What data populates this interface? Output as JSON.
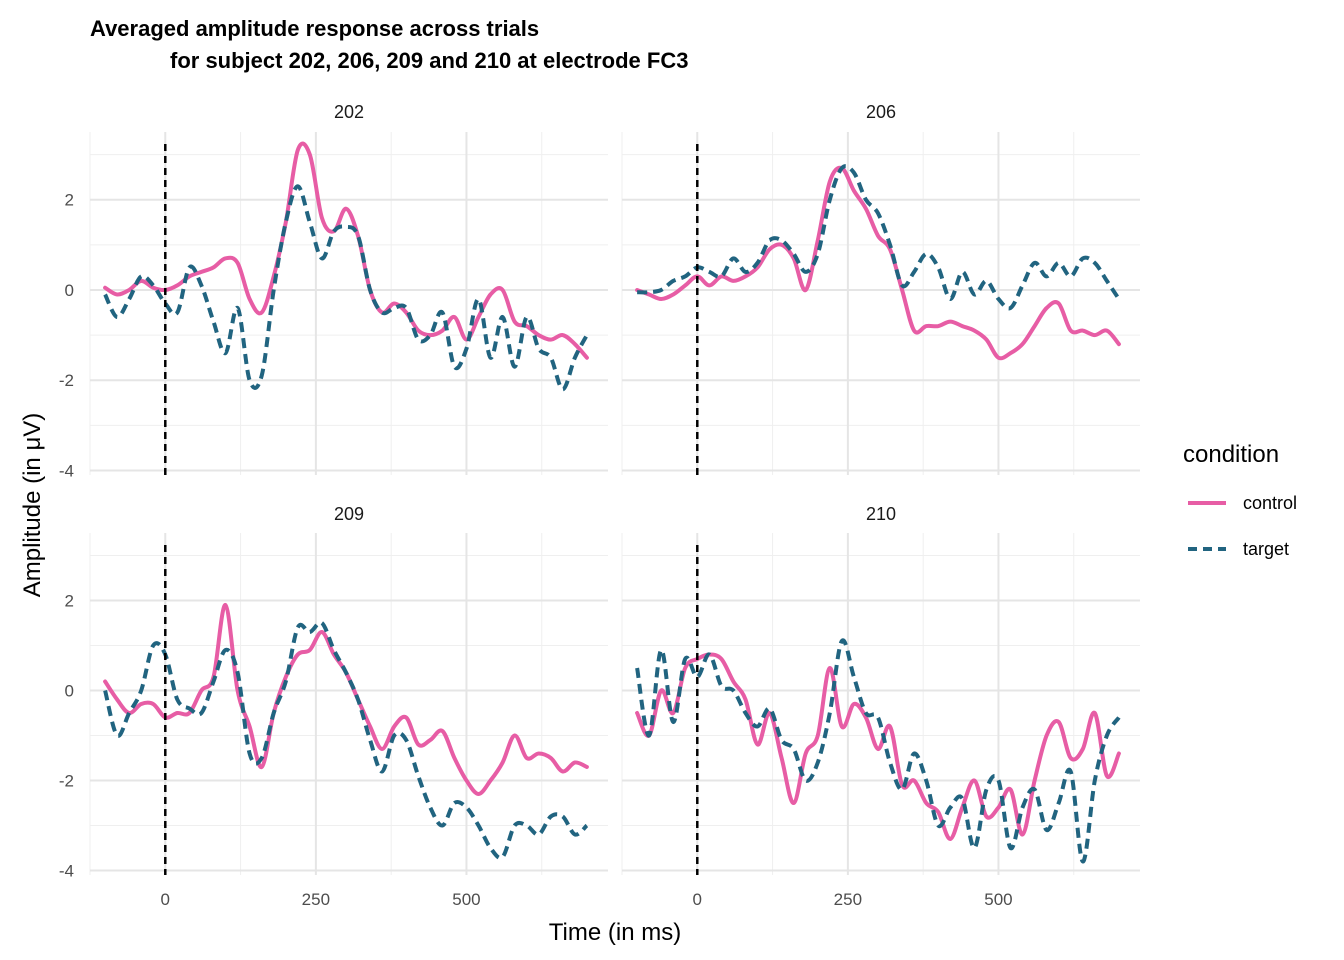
{
  "chart_data": {
    "type": "line",
    "title_line1": "Averaged amplitude response across trials",
    "title_line2": "for subject 202, 206, 209 and 210 at electrode FC3",
    "xlabel": "Time (in ms)",
    "ylabel": "Amplitude (in μV)",
    "xlim": [
      -125,
      735
    ],
    "ylim": [
      -4.1,
      3.5
    ],
    "xticks": [
      0,
      250,
      500
    ],
    "yticks": [
      -4,
      -2,
      0,
      2
    ],
    "vline_x": 0,
    "legend": {
      "title": "condition",
      "position": "right"
    },
    "series_styles": [
      {
        "name": "control",
        "color": "#E75DA5",
        "dash": "solid"
      },
      {
        "name": "target",
        "color": "#216480",
        "dash": "dashed"
      }
    ],
    "panels": [
      {
        "label": "202",
        "series": [
          {
            "name": "control",
            "x": [
              -100,
              -80,
              -60,
              -40,
              -20,
              0,
              20,
              40,
              60,
              80,
              100,
              120,
              140,
              160,
              180,
              200,
              220,
              240,
              260,
              280,
              300,
              320,
              340,
              360,
              380,
              400,
              420,
              440,
              460,
              480,
              500,
              520,
              540,
              560,
              580,
              600,
              620,
              640,
              660,
              680,
              700
            ],
            "y": [
              0.05,
              -0.1,
              0.0,
              0.2,
              0.05,
              0.0,
              0.1,
              0.3,
              0.4,
              0.5,
              0.7,
              0.6,
              -0.2,
              -0.5,
              0.3,
              1.5,
              3.1,
              3.0,
              1.6,
              1.3,
              1.8,
              1.2,
              0.0,
              -0.5,
              -0.3,
              -0.5,
              -0.9,
              -1.0,
              -0.9,
              -0.6,
              -1.1,
              -0.6,
              -0.1,
              0.0,
              -0.7,
              -0.8,
              -1.0,
              -1.1,
              -1.0,
              -1.2,
              -1.5
            ]
          },
          {
            "name": "target",
            "x": [
              -100,
              -80,
              -60,
              -40,
              -20,
              0,
              20,
              40,
              60,
              80,
              100,
              120,
              140,
              160,
              180,
              200,
              220,
              240,
              260,
              280,
              300,
              320,
              340,
              360,
              380,
              400,
              420,
              440,
              460,
              480,
              500,
              520,
              540,
              560,
              580,
              600,
              620,
              640,
              660,
              680,
              700
            ],
            "y": [
              -0.1,
              -0.6,
              -0.2,
              0.3,
              0.1,
              -0.3,
              -0.5,
              0.5,
              0.1,
              -0.7,
              -1.4,
              -0.4,
              -2.0,
              -1.9,
              0.0,
              1.5,
              2.3,
              1.5,
              0.7,
              1.3,
              1.4,
              1.2,
              0.0,
              -0.5,
              -0.4,
              -0.4,
              -1.1,
              -1.0,
              -0.5,
              -1.7,
              -1.3,
              -0.2,
              -1.5,
              -0.6,
              -1.7,
              -0.6,
              -1.3,
              -1.5,
              -2.2,
              -1.5,
              -1.0
            ]
          }
        ]
      },
      {
        "label": "206",
        "series": [
          {
            "name": "control",
            "x": [
              -100,
              -80,
              -60,
              -40,
              -20,
              0,
              20,
              40,
              60,
              80,
              100,
              120,
              140,
              160,
              180,
              200,
              220,
              240,
              260,
              280,
              300,
              320,
              340,
              360,
              380,
              400,
              420,
              440,
              460,
              480,
              500,
              520,
              540,
              560,
              580,
              600,
              620,
              640,
              660,
              680,
              700
            ],
            "y": [
              0.0,
              -0.1,
              -0.2,
              -0.1,
              0.1,
              0.3,
              0.1,
              0.3,
              0.2,
              0.3,
              0.5,
              0.9,
              1.0,
              0.7,
              0.0,
              1.1,
              2.4,
              2.7,
              2.2,
              1.8,
              1.2,
              0.9,
              0.0,
              -0.9,
              -0.8,
              -0.8,
              -0.7,
              -0.8,
              -0.9,
              -1.1,
              -1.5,
              -1.4,
              -1.2,
              -0.8,
              -0.4,
              -0.3,
              -0.9,
              -0.9,
              -1.0,
              -0.9,
              -1.2
            ]
          },
          {
            "name": "target",
            "x": [
              -100,
              -80,
              -60,
              -40,
              -20,
              0,
              20,
              40,
              60,
              80,
              100,
              120,
              140,
              160,
              180,
              200,
              220,
              240,
              260,
              280,
              300,
              320,
              340,
              360,
              380,
              400,
              420,
              440,
              460,
              480,
              500,
              520,
              540,
              560,
              580,
              600,
              620,
              640,
              660,
              680,
              700
            ],
            "y": [
              -0.05,
              -0.05,
              0.0,
              0.2,
              0.3,
              0.5,
              0.4,
              0.3,
              0.7,
              0.4,
              0.6,
              1.1,
              1.1,
              0.8,
              0.4,
              0.8,
              2.0,
              2.7,
              2.6,
              2.0,
              1.7,
              1.0,
              0.1,
              0.4,
              0.8,
              0.5,
              -0.2,
              0.4,
              -0.1,
              0.2,
              -0.2,
              -0.4,
              0.1,
              0.6,
              0.3,
              0.6,
              0.3,
              0.7,
              0.6,
              0.2,
              -0.2
            ]
          }
        ]
      },
      {
        "label": "209",
        "series": [
          {
            "name": "control",
            "x": [
              -100,
              -80,
              -60,
              -40,
              -20,
              0,
              20,
              40,
              60,
              80,
              100,
              120,
              140,
              160,
              180,
              200,
              220,
              240,
              260,
              280,
              300,
              320,
              340,
              360,
              380,
              400,
              420,
              440,
              460,
              480,
              500,
              520,
              540,
              560,
              580,
              600,
              620,
              640,
              660,
              680,
              700
            ],
            "y": [
              0.2,
              -0.2,
              -0.5,
              -0.3,
              -0.3,
              -0.6,
              -0.5,
              -0.5,
              0.0,
              0.3,
              1.9,
              0.0,
              -0.8,
              -1.7,
              -0.5,
              0.3,
              0.8,
              0.9,
              1.3,
              0.8,
              0.4,
              -0.2,
              -0.8,
              -1.3,
              -0.8,
              -0.6,
              -1.2,
              -1.1,
              -0.9,
              -1.5,
              -2.0,
              -2.3,
              -2.0,
              -1.6,
              -1.0,
              -1.5,
              -1.4,
              -1.5,
              -1.8,
              -1.6,
              -1.7
            ]
          },
          {
            "name": "target",
            "x": [
              -100,
              -80,
              -60,
              -40,
              -20,
              0,
              20,
              40,
              60,
              80,
              100,
              120,
              140,
              160,
              180,
              200,
              220,
              240,
              260,
              280,
              300,
              320,
              340,
              360,
              380,
              400,
              420,
              440,
              460,
              480,
              500,
              520,
              540,
              560,
              580,
              600,
              620,
              640,
              660,
              680,
              700
            ],
            "y": [
              0.0,
              -1.0,
              -0.5,
              0.0,
              1.0,
              0.8,
              -0.2,
              -0.4,
              -0.5,
              0.2,
              0.9,
              0.4,
              -1.4,
              -1.5,
              -0.5,
              0.2,
              1.4,
              1.3,
              1.5,
              0.9,
              0.4,
              -0.2,
              -1.1,
              -1.8,
              -1.0,
              -1.1,
              -1.9,
              -2.6,
              -3.0,
              -2.5,
              -2.6,
              -3.0,
              -3.5,
              -3.7,
              -3.0,
              -3.0,
              -3.2,
              -2.8,
              -2.8,
              -3.2,
              -3.0
            ]
          }
        ]
      },
      {
        "label": "210",
        "series": [
          {
            "name": "control",
            "x": [
              -100,
              -80,
              -60,
              -40,
              -20,
              0,
              20,
              40,
              60,
              80,
              100,
              120,
              140,
              160,
              180,
              200,
              220,
              240,
              260,
              280,
              300,
              320,
              340,
              360,
              380,
              400,
              420,
              440,
              460,
              480,
              500,
              520,
              540,
              560,
              580,
              600,
              620,
              640,
              660,
              680,
              700
            ],
            "y": [
              -0.5,
              -1.0,
              0.0,
              -0.5,
              0.5,
              0.7,
              0.8,
              0.7,
              0.2,
              -0.2,
              -1.2,
              -0.5,
              -1.5,
              -2.5,
              -1.4,
              -1.0,
              0.5,
              -0.8,
              -0.3,
              -0.6,
              -1.3,
              -0.8,
              -2.1,
              -2.0,
              -2.5,
              -2.7,
              -3.3,
              -2.6,
              -2.0,
              -2.8,
              -2.6,
              -2.2,
              -3.2,
              -2.0,
              -1.0,
              -0.7,
              -1.5,
              -1.3,
              -0.5,
              -1.9,
              -1.4
            ]
          },
          {
            "name": "target",
            "x": [
              -100,
              -80,
              -60,
              -40,
              -20,
              0,
              20,
              40,
              60,
              80,
              100,
              120,
              140,
              160,
              180,
              200,
              220,
              240,
              260,
              280,
              300,
              320,
              340,
              360,
              380,
              400,
              420,
              440,
              460,
              480,
              500,
              520,
              540,
              560,
              580,
              600,
              620,
              640,
              660,
              680,
              700
            ],
            "y": [
              0.5,
              -1.0,
              0.9,
              -0.7,
              0.7,
              0.3,
              0.8,
              0.1,
              0.0,
              -0.5,
              -0.8,
              -0.4,
              -1.1,
              -1.3,
              -2.0,
              -1.6,
              -0.5,
              1.1,
              0.3,
              -0.5,
              -0.6,
              -1.6,
              -2.2,
              -1.4,
              -2.0,
              -3.0,
              -2.6,
              -2.4,
              -3.5,
              -2.2,
              -2.0,
              -3.5,
              -2.6,
              -2.2,
              -3.1,
              -2.5,
              -1.8,
              -3.8,
              -2.0,
              -1.0,
              -0.6
            ]
          }
        ]
      }
    ]
  }
}
